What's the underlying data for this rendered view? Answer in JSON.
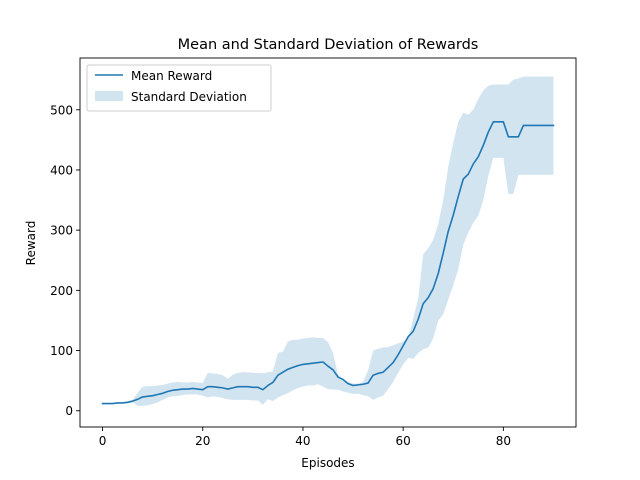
{
  "chart_data": {
    "type": "line",
    "title": "Mean and Standard Deviation of Rewards",
    "xlabel": "Episodes",
    "ylabel": "Reward",
    "xlim": [
      -4.5,
      94.5
    ],
    "ylim": [
      -27,
      586
    ],
    "xticks": [
      0,
      20,
      40,
      60,
      80
    ],
    "yticks": [
      0,
      100,
      200,
      300,
      400,
      500
    ],
    "grid": false,
    "legend": "upper-left",
    "legend_entries": {
      "mean": "Mean Reward",
      "std": "Standard Deviation"
    },
    "colors": {
      "mean_line": "#1f77b4",
      "std_fill": "#1f77b4"
    },
    "x": [
      0,
      1,
      2,
      3,
      4,
      5,
      6,
      7,
      8,
      9,
      10,
      11,
      12,
      13,
      14,
      15,
      16,
      17,
      18,
      19,
      20,
      21,
      22,
      23,
      24,
      25,
      26,
      27,
      28,
      29,
      30,
      31,
      32,
      33,
      34,
      35,
      36,
      37,
      38,
      39,
      40,
      41,
      42,
      43,
      44,
      45,
      46,
      47,
      48,
      49,
      50,
      51,
      52,
      53,
      54,
      55,
      56,
      57,
      58,
      59,
      60,
      61,
      62,
      63,
      64,
      65,
      66,
      67,
      68,
      69,
      70,
      71,
      72,
      73,
      74,
      75,
      76,
      77,
      78,
      79,
      80,
      81,
      82,
      83,
      84,
      85,
      86,
      87,
      88,
      89,
      90
    ],
    "series": [
      {
        "name": "Mean Reward",
        "values": [
          12,
          12,
          12,
          13,
          13,
          14,
          16,
          19,
          23,
          24,
          25,
          27,
          29,
          32,
          34,
          35,
          36,
          36,
          37,
          36,
          35,
          40,
          40,
          39,
          38,
          36,
          38,
          40,
          40,
          40,
          39,
          39,
          35,
          42,
          47,
          59,
          64,
          69,
          72,
          75,
          77,
          78,
          79,
          80,
          81,
          74,
          68,
          56,
          52,
          45,
          42,
          43,
          44,
          46,
          59,
          62,
          64,
          72,
          80,
          93,
          108,
          123,
          132,
          152,
          178,
          188,
          203,
          228,
          262,
          298,
          325,
          356,
          385,
          393,
          410,
          422,
          441,
          463,
          480,
          480,
          480,
          455,
          455,
          455,
          474,
          474,
          474,
          474,
          474,
          474,
          474
        ]
      }
    ],
    "std_band": {
      "upper": [
        12,
        12,
        12,
        13,
        14,
        16,
        18,
        30,
        40,
        41,
        41,
        42,
        43,
        45,
        47,
        48,
        47,
        47,
        48,
        47,
        46,
        63,
        62,
        61,
        59,
        53,
        60,
        63,
        64,
        64,
        63,
        63,
        62,
        64,
        65,
        96,
        98,
        115,
        118,
        118,
        120,
        121,
        122,
        121,
        121,
        114,
        96,
        60,
        52,
        48,
        45,
        45,
        48,
        67,
        100,
        103,
        105,
        106,
        109,
        112,
        115,
        120,
        153,
        186,
        260,
        270,
        284,
        310,
        350,
        405,
        445,
        480,
        495,
        492,
        500,
        518,
        532,
        540,
        542,
        542,
        542,
        542,
        550,
        552,
        555,
        555,
        555,
        555,
        555,
        555,
        555
      ],
      "lower": [
        12,
        12,
        12,
        13,
        12,
        12,
        14,
        8,
        8,
        9,
        11,
        14,
        18,
        22,
        24,
        25,
        26,
        27,
        27,
        27,
        25,
        22,
        24,
        23,
        21,
        19,
        18,
        18,
        18,
        18,
        17,
        17,
        10,
        19,
        16,
        22,
        26,
        29,
        34,
        38,
        40,
        42,
        42,
        44,
        40,
        36,
        35,
        35,
        32,
        30,
        28,
        28,
        26,
        24,
        18,
        22,
        25,
        36,
        48,
        63,
        77,
        88,
        86,
        96,
        102,
        105,
        120,
        150,
        160,
        185,
        208,
        235,
        276,
        296,
        312,
        324,
        350,
        390,
        420,
        420,
        420,
        360,
        360,
        392,
        392,
        392,
        392,
        392,
        392,
        392,
        392
      ]
    }
  }
}
